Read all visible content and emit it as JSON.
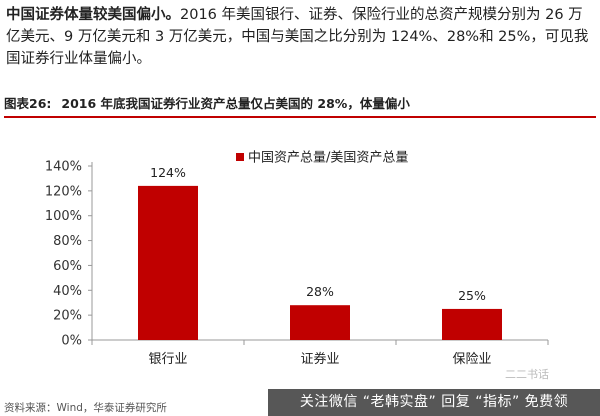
{
  "paragraph": {
    "lead": "中国证券体量较美国偏小。",
    "body": "2016 年美国银行、证券、保险行业的总资产规模分别为 26 万亿美元、9 万亿美元和 3 万亿美元，中国与美国之比分别为 124%、28%和 25%，可见我国证券行业体量偏小。"
  },
  "figure": {
    "label": "图表26:",
    "title": "2016 年底我国证券行业资产总量仅占美国的 28%，体量偏小"
  },
  "chart_data": {
    "type": "bar",
    "categories": [
      "银行业",
      "证券业",
      "保险业"
    ],
    "series": [
      {
        "name": "中国资产总量/美国资产总量",
        "values": [
          124,
          28,
          25
        ],
        "color": "#c00000"
      }
    ],
    "data_labels": [
      "124%",
      "28%",
      "25%"
    ],
    "y_ticks": [
      "0%",
      "20%",
      "40%",
      "60%",
      "80%",
      "100%",
      "120%",
      "140%"
    ],
    "ylim": [
      0,
      140
    ],
    "legend_position": "top-right",
    "grid": false
  },
  "source": "资料来源：Wind，华泰证券研究所",
  "watermark": "关注微信 “老韩实盘” 回复 “指标” 免费领",
  "logo_text": "二二书话"
}
